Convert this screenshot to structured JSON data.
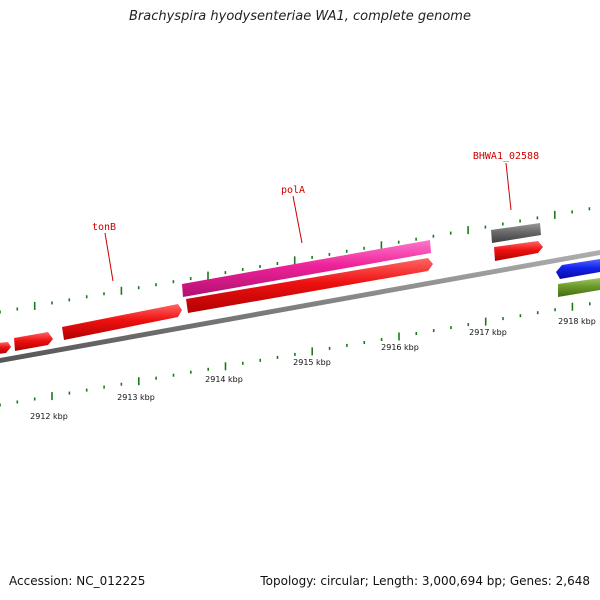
{
  "title": "Brachyspira hyodysenteriae WA1, complete genome",
  "footer": {
    "accession": "Accession: NC_012225",
    "summary": "Topology: circular; Length: 3,000,694 bp; Genes: 2,648"
  },
  "scale_labels": [
    "2912 kbp",
    "2913 kbp",
    "2914 kbp",
    "2915 kbp",
    "2916 kbp",
    "2917 kbp",
    "2918 kbp"
  ],
  "gene_labels": [
    "tonB",
    "polA",
    "BHWA1_02588"
  ],
  "colors": {
    "backbone": "#808080",
    "tick": "#1a7a1a",
    "red_gene": "#ee1111",
    "pink_gene": "#ee2299",
    "gray_gene": "#6a6a6a",
    "blue_gene": "#1122ee",
    "olive_gene": "#6a9a2a",
    "label_red": "#cc0000"
  }
}
